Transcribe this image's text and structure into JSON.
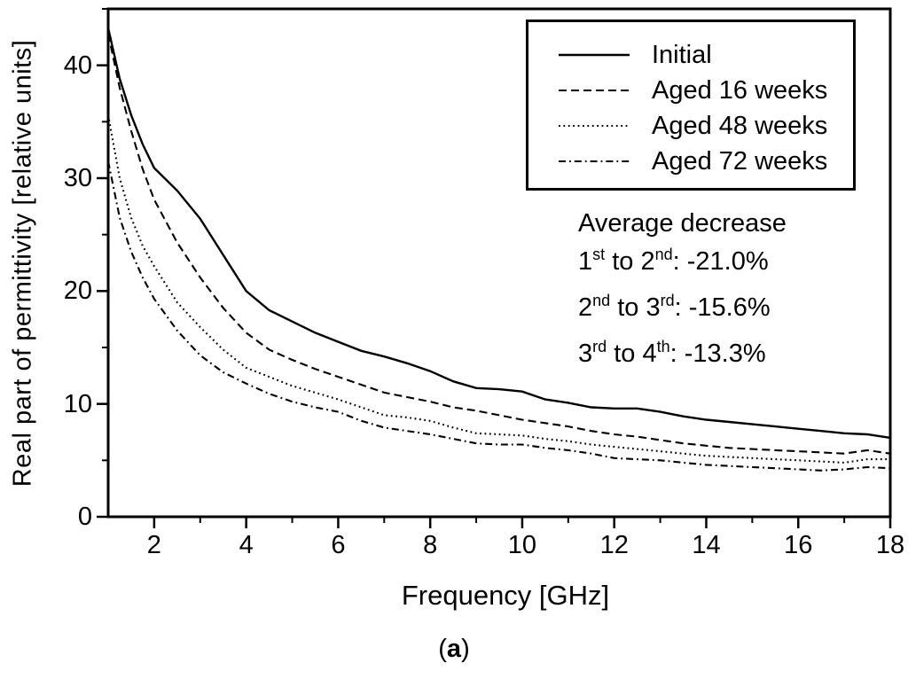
{
  "chart_data": {
    "type": "line",
    "title": "",
    "xlabel": "Frequency [GHz]",
    "ylabel": "Real part of permittivity [relative units]",
    "xlim": [
      1,
      18
    ],
    "ylim": [
      0,
      45
    ],
    "grid": false,
    "legend_position": "top-right",
    "x_major_ticks": [
      2,
      4,
      6,
      8,
      10,
      12,
      14,
      16,
      18
    ],
    "x_minor_ticks": [
      3,
      5,
      7,
      9,
      11,
      13,
      15,
      17
    ],
    "y_major_ticks": [
      0,
      10,
      20,
      30,
      40
    ],
    "y_minor_ticks": [
      5,
      15,
      25,
      35,
      45
    ],
    "x": [
      1,
      1.25,
      1.5,
      1.75,
      2,
      2.5,
      3,
      3.5,
      4,
      4.5,
      5,
      5.5,
      6,
      6.5,
      7,
      7.5,
      8,
      8.5,
      9,
      9.5,
      10,
      10.5,
      11,
      11.5,
      12,
      12.5,
      13,
      13.5,
      14,
      14.5,
      15,
      15.5,
      16,
      16.5,
      17,
      17.5,
      18
    ],
    "series": [
      {
        "name": "Initial",
        "line_style": "solid",
        "values": [
          43.3,
          38.8,
          35.6,
          33.0,
          30.9,
          28.9,
          26.4,
          23.2,
          20.0,
          18.3,
          17.3,
          16.3,
          15.5,
          14.7,
          14.2,
          13.6,
          12.9,
          12.0,
          11.4,
          11.3,
          11.1,
          10.4,
          10.1,
          9.7,
          9.6,
          9.6,
          9.3,
          8.9,
          8.6,
          8.4,
          8.2,
          8.0,
          7.8,
          7.6,
          7.4,
          7.3,
          7.0
        ]
      },
      {
        "name": "Aged 16 weeks",
        "line_style": "dashed",
        "values": [
          42.8,
          38.0,
          34.2,
          30.8,
          28.1,
          24.3,
          21.2,
          18.5,
          16.3,
          14.8,
          13.9,
          13.1,
          12.4,
          11.7,
          11.0,
          10.6,
          10.2,
          9.7,
          9.4,
          9.0,
          8.6,
          8.3,
          8.0,
          7.6,
          7.3,
          7.1,
          6.8,
          6.5,
          6.3,
          6.1,
          6.0,
          5.9,
          5.8,
          5.7,
          5.6,
          5.9,
          5.6
        ]
      },
      {
        "name": "Aged 48 weeks",
        "line_style": "dotted",
        "values": [
          35.6,
          30.0,
          26.5,
          24.0,
          22.2,
          19.0,
          16.8,
          14.8,
          13.2,
          12.4,
          11.6,
          11.0,
          10.4,
          9.7,
          9.0,
          8.8,
          8.5,
          7.9,
          7.4,
          7.3,
          7.2,
          6.9,
          6.7,
          6.4,
          6.2,
          6.0,
          5.8,
          5.6,
          5.4,
          5.3,
          5.2,
          5.1,
          5.0,
          4.9,
          4.8,
          5.1,
          5.1
        ]
      },
      {
        "name": "Aged 72 weeks",
        "line_style": "dash-dot",
        "values": [
          31.5,
          26.5,
          23.5,
          21.2,
          19.3,
          16.5,
          14.3,
          12.8,
          11.8,
          10.9,
          10.2,
          9.7,
          9.3,
          8.5,
          7.9,
          7.6,
          7.3,
          6.9,
          6.5,
          6.4,
          6.4,
          6.1,
          5.9,
          5.6,
          5.2,
          5.1,
          5.0,
          4.8,
          4.6,
          4.5,
          4.4,
          4.3,
          4.2,
          4.1,
          4.2,
          4.4,
          4.3
        ]
      }
    ]
  },
  "annotation": {
    "title": "Average decrease",
    "rows": [
      {
        "from": "1",
        "from_sup": "st",
        "mid": " to ",
        "to": "2",
        "to_sup": "nd",
        "value": ": -21.0%"
      },
      {
        "from": "2",
        "from_sup": "nd",
        "mid": " to ",
        "to": "3",
        "to_sup": "rd",
        "value": ": -15.6%"
      },
      {
        "from": "3",
        "from_sup": "rd",
        "mid": " to ",
        "to": "4",
        "to_sup": "th",
        "value": ": -13.3%"
      }
    ]
  },
  "caption": {
    "open": "(",
    "letter": "a",
    "close": ")"
  },
  "colors": {
    "line": "#000000",
    "background": "#ffffff"
  }
}
